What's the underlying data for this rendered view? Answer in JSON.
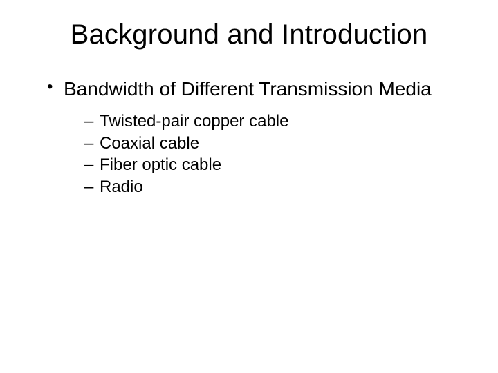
{
  "slide": {
    "title": "Background and Introduction",
    "bullets": {
      "level1": [
        {
          "text": "Bandwidth of Different Transmission Media",
          "children": [
            "Twisted-pair copper cable",
            "Coaxial cable",
            "Fiber optic cable",
            "Radio"
          ]
        }
      ]
    }
  },
  "styling": {
    "background_color": "#ffffff",
    "text_color": "#000000",
    "title_fontsize": 40,
    "level1_fontsize": 28,
    "level2_fontsize": 24,
    "font_family": "Arial"
  }
}
